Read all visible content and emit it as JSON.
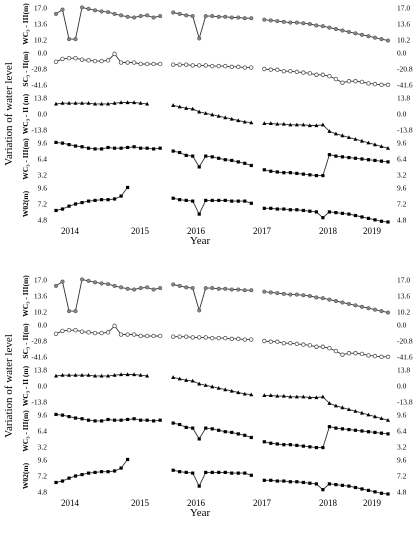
{
  "chart_data": [
    {
      "type": "line",
      "ylabel": "Variation of water level",
      "xlabel": "Year",
      "xticks": [
        "2014",
        "2015",
        "2016",
        "2017",
        "2018",
        "2019"
      ],
      "panels": [
        {
          "label": "WC₃ - III(m)",
          "marker": "circle-filled-gray",
          "yticks": [
            "17.0",
            "13.6",
            "10.2"
          ],
          "values_ratio": [
            0.78,
            0.9,
            0.08,
            0.08,
            0.96,
            0.92,
            0.88,
            0.85,
            0.83,
            0.78,
            0.74,
            0.7,
            0.68,
            0.72,
            0.74,
            0.68,
            0.72,
            null,
            0.82,
            0.78,
            0.74,
            0.72,
            0.1,
            0.72,
            0.72,
            0.7,
            0.7,
            0.68,
            0.68,
            0.66,
            0.66,
            null,
            0.62,
            0.6,
            0.58,
            0.56,
            0.54,
            0.54,
            0.52,
            0.5,
            0.46,
            0.44,
            0.4,
            0.36,
            0.32,
            0.28,
            0.24,
            0.2,
            0.16,
            0.12,
            0.08,
            0.04
          ]
        },
        {
          "label": "SC₃ - II(m)",
          "marker": "circle-open",
          "yticks": [
            "0.0",
            "-20.8",
            "-41.6"
          ],
          "values_ratio": [
            0.7,
            0.78,
            0.8,
            0.8,
            0.76,
            0.74,
            0.72,
            0.72,
            0.74,
            0.92,
            0.68,
            0.68,
            0.68,
            0.64,
            0.64,
            0.64,
            0.64,
            null,
            0.62,
            0.62,
            0.62,
            0.6,
            0.6,
            0.6,
            0.58,
            0.58,
            0.58,
            0.56,
            0.56,
            0.54,
            0.54,
            null,
            0.5,
            0.48,
            0.48,
            0.44,
            0.44,
            0.42,
            0.4,
            0.38,
            0.34,
            0.34,
            0.3,
            0.22,
            0.12,
            0.16,
            0.16,
            0.14,
            0.1,
            0.08,
            0.06,
            0.06
          ]
        },
        {
          "label": "WC₃ - II (m)",
          "marker": "triangle-filled",
          "yticks": [
            "13.8",
            "0.0",
            "-13.8"
          ],
          "values_ratio": [
            0.78,
            0.8,
            0.8,
            0.8,
            0.8,
            0.8,
            0.78,
            0.78,
            0.78,
            0.8,
            0.82,
            0.82,
            0.82,
            0.8,
            0.78,
            null,
            null,
            null,
            0.74,
            0.7,
            0.66,
            0.64,
            0.56,
            0.52,
            0.48,
            0.44,
            0.4,
            0.36,
            0.32,
            0.28,
            0.26,
            null,
            0.24,
            0.24,
            0.22,
            0.22,
            0.2,
            0.2,
            0.2,
            0.18,
            0.18,
            0.2,
            0.02,
            -0.05,
            -0.1,
            -0.15,
            -0.2,
            -0.25,
            -0.3,
            -0.35,
            -0.4,
            -0.45
          ]
        },
        {
          "label": "WC₃ - III(m)",
          "marker": "square-filled",
          "yticks": [
            "9.6",
            "6.4",
            "3.2"
          ],
          "values_ratio": [
            0.96,
            0.94,
            0.9,
            0.86,
            0.84,
            0.8,
            0.78,
            0.78,
            0.82,
            0.8,
            0.8,
            0.82,
            0.84,
            0.8,
            0.8,
            0.78,
            0.8,
            null,
            0.72,
            0.68,
            0.6,
            0.58,
            0.28,
            0.58,
            0.56,
            0.52,
            0.48,
            0.46,
            0.42,
            0.38,
            0.32,
            null,
            0.2,
            0.16,
            0.14,
            0.12,
            0.12,
            0.1,
            0.08,
            0.06,
            0.04,
            0.04,
            0.62,
            0.58,
            0.56,
            0.54,
            0.52,
            0.5,
            0.48,
            0.46,
            0.44,
            0.42
          ]
        },
        {
          "label": "W02(m)",
          "marker": "square-filled",
          "yticks": [
            "9.6",
            "7.2",
            "4.8"
          ],
          "values_ratio": [
            0.32,
            0.36,
            0.44,
            0.5,
            0.54,
            0.58,
            0.6,
            0.62,
            0.62,
            0.64,
            0.72,
            0.96,
            null,
            null,
            null,
            null,
            null,
            null,
            0.66,
            0.62,
            0.6,
            0.58,
            0.22,
            0.6,
            0.6,
            0.6,
            0.6,
            0.58,
            0.58,
            0.58,
            0.52,
            null,
            0.38,
            0.38,
            0.36,
            0.36,
            0.34,
            0.34,
            0.32,
            0.3,
            0.28,
            0.12,
            0.28,
            0.26,
            0.24,
            0.22,
            0.18,
            0.14,
            0.1,
            0.06,
            0.02,
            0.0
          ]
        }
      ]
    }
  ]
}
